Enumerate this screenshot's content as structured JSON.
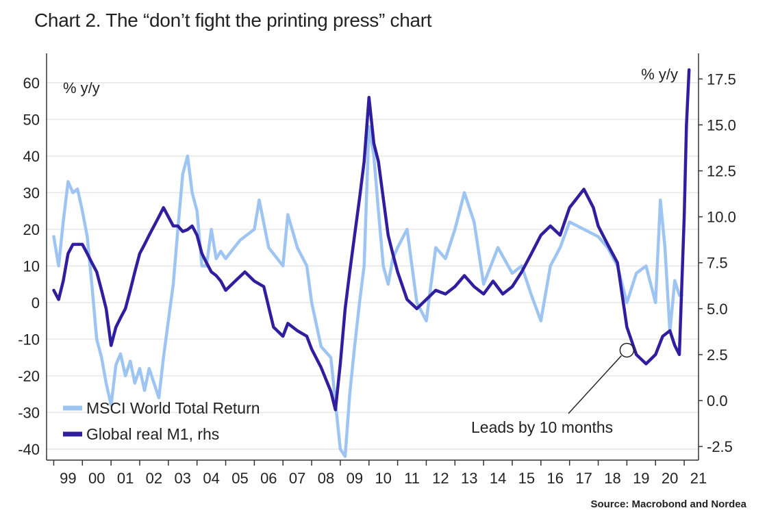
{
  "title": "Chart 2. The “don’t fight the printing press” chart",
  "source": "Source: Macrobond and Nordea",
  "chart_data": {
    "type": "line",
    "left_unit": "% y/y",
    "right_unit": "% y/y",
    "left_ylim": [
      -43,
      68
    ],
    "right_ylim": [
      -3.24,
      18.89
    ],
    "left_yticks": [
      "60",
      "50",
      "40",
      "30",
      "20",
      "10",
      "0",
      "-10",
      "-20",
      "-30",
      "-40"
    ],
    "left_ytick_values": [
      60,
      50,
      40,
      30,
      20,
      10,
      0,
      -10,
      -20,
      -30,
      -40
    ],
    "right_yticks": [
      "17.5",
      "15.0",
      "12.5",
      "10.0",
      "7.5",
      "5.0",
      "2.5",
      "0.0",
      "-2.5"
    ],
    "right_ytick_values": [
      17.5,
      15.0,
      12.5,
      10.0,
      7.5,
      5.0,
      2.5,
      0.0,
      -2.5
    ],
    "xlim": [
      1998.75,
      2021.5
    ],
    "xticks": [
      "99",
      "00",
      "01",
      "02",
      "03",
      "04",
      "05",
      "06",
      "07",
      "08",
      "09",
      "10",
      "11",
      "12",
      "13",
      "14",
      "15",
      "16",
      "17",
      "18",
      "19",
      "20",
      "21"
    ],
    "grid": true,
    "legend_position": "bottom-left",
    "colors": {
      "msci": "#9ec5f2",
      "m1": "#2f1f9e",
      "grid": "#e6e6e6",
      "axis": "#333333"
    },
    "series": [
      {
        "name": "MSCI World Total Return",
        "axis": "left",
        "x": [
          1999.0,
          1999.17,
          1999.33,
          1999.5,
          1999.67,
          1999.83,
          2000.0,
          2000.17,
          2000.33,
          2000.5,
          2000.67,
          2000.83,
          2001.0,
          2001.17,
          2001.33,
          2001.5,
          2001.67,
          2001.83,
          2002.0,
          2002.17,
          2002.33,
          2002.5,
          2002.67,
          2002.83,
          2003.0,
          2003.17,
          2003.33,
          2003.5,
          2003.67,
          2003.83,
          2004.0,
          2004.17,
          2004.33,
          2004.5,
          2004.67,
          2004.83,
          2005.0,
          2005.5,
          2006.0,
          2006.17,
          2006.5,
          2007.0,
          2007.17,
          2007.5,
          2007.83,
          2008.0,
          2008.33,
          2008.67,
          2009.0,
          2009.17,
          2009.33,
          2009.5,
          2009.67,
          2009.83,
          2010.0,
          2010.17,
          2010.33,
          2010.5,
          2010.67,
          2010.83,
          2011.0,
          2011.33,
          2011.67,
          2012.0,
          2012.33,
          2012.67,
          2013.0,
          2013.33,
          2013.67,
          2014.0,
          2014.5,
          2015.0,
          2015.33,
          2015.67,
          2016.0,
          2016.33,
          2016.67,
          2017.0,
          2017.5,
          2018.0,
          2018.33,
          2018.67,
          2019.0,
          2019.33,
          2019.67,
          2020.0,
          2020.17,
          2020.33,
          2020.5,
          2020.67,
          2020.83,
          2020.92
        ],
        "values": [
          18,
          10,
          22,
          33,
          30,
          31,
          25,
          18,
          5,
          -10,
          -15,
          -22,
          -28,
          -17,
          -14,
          -20,
          -16,
          -22,
          -18,
          -24,
          -18,
          -22,
          -26,
          -15,
          -5,
          5,
          20,
          35,
          40,
          30,
          25,
          10,
          10,
          20,
          12,
          14,
          12,
          17,
          20,
          28,
          15,
          10,
          24,
          15,
          10,
          0,
          -12,
          -15,
          -40,
          -42,
          -25,
          -12,
          0,
          10,
          48,
          40,
          25,
          10,
          5,
          12,
          15,
          20,
          0,
          -5,
          15,
          12,
          20,
          30,
          22,
          5,
          15,
          8,
          10,
          2,
          -5,
          10,
          15,
          22,
          20,
          18,
          15,
          10,
          0,
          8,
          10,
          0,
          28,
          15,
          -8,
          6,
          2,
          2
        ]
      },
      {
        "name": "Global real M1, rhs",
        "axis": "right",
        "x": [
          1999.0,
          1999.17,
          1999.33,
          1999.5,
          1999.67,
          1999.83,
          2000.0,
          2000.17,
          2000.33,
          2000.5,
          2000.67,
          2000.83,
          2001.0,
          2001.17,
          2001.33,
          2001.5,
          2001.67,
          2001.83,
          2002.0,
          2002.17,
          2002.33,
          2002.5,
          2002.67,
          2002.83,
          2003.0,
          2003.17,
          2003.33,
          2003.5,
          2003.67,
          2003.83,
          2004.0,
          2004.17,
          2004.33,
          2004.5,
          2004.67,
          2004.83,
          2005.0,
          2005.33,
          2005.67,
          2006.0,
          2006.33,
          2006.67,
          2007.0,
          2007.17,
          2007.5,
          2007.83,
          2008.0,
          2008.33,
          2008.67,
          2008.83,
          2009.0,
          2009.17,
          2009.33,
          2009.5,
          2009.67,
          2009.83,
          2010.0,
          2010.17,
          2010.33,
          2010.5,
          2010.67,
          2010.83,
          2011.0,
          2011.33,
          2011.67,
          2012.0,
          2012.33,
          2012.67,
          2013.0,
          2013.33,
          2013.67,
          2014.0,
          2014.33,
          2014.67,
          2015.0,
          2015.33,
          2015.67,
          2016.0,
          2016.33,
          2016.67,
          2017.0,
          2017.25,
          2017.5,
          2017.83,
          2018.0,
          2018.33,
          2018.67,
          2019.0,
          2019.33,
          2019.67,
          2020.0,
          2020.25,
          2020.5,
          2020.67,
          2020.83,
          2021.0,
          2021.08,
          2021.17
        ],
        "values": [
          6,
          5.5,
          6.5,
          8,
          8.5,
          8.5,
          8.5,
          8,
          7.5,
          7,
          6,
          5,
          3,
          4,
          4.5,
          5,
          6,
          7,
          8,
          8.5,
          9,
          9.5,
          10,
          10.5,
          10,
          9.5,
          9.5,
          9.2,
          9.3,
          9.5,
          9,
          8,
          7.5,
          7,
          6.8,
          6.5,
          6,
          6.5,
          7,
          6.5,
          6.2,
          4,
          3.5,
          4.2,
          3.8,
          3.5,
          2.8,
          1.8,
          0.5,
          -0.5,
          2,
          5,
          7,
          9,
          11,
          13,
          16.5,
          14,
          13,
          11,
          9,
          8,
          7,
          5.5,
          5,
          5.5,
          6,
          5.8,
          6.2,
          6.8,
          6.2,
          5.8,
          6.5,
          5.8,
          6.2,
          7,
          8,
          9,
          9.5,
          9,
          10.5,
          11,
          11.5,
          10.5,
          9.5,
          8.5,
          7.5,
          4,
          2.5,
          2,
          2.5,
          3.5,
          3.8,
          3,
          2.5,
          10,
          15,
          18
        ]
      }
    ],
    "annotation": {
      "text": "Leads by 10 months",
      "x": 2019.0,
      "y_left": -13
    },
    "legend": [
      "MSCI World Total Return",
      "Global real M1, rhs"
    ]
  }
}
